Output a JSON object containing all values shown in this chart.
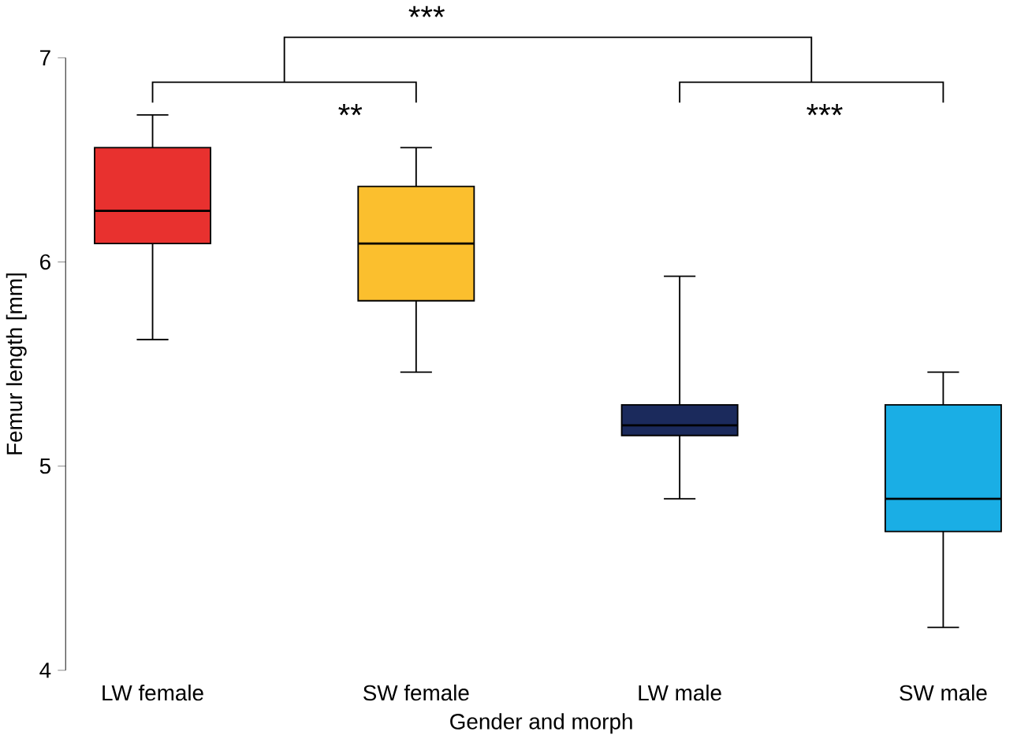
{
  "chart_data": {
    "type": "box",
    "xlabel": "Gender and morph",
    "ylabel": "Femur length [mm]",
    "categories": [
      "LW female",
      "SW female",
      "LW male",
      "SW male"
    ],
    "colors": [
      "#e8312f",
      "#fbbf2e",
      "#1b2a5c",
      "#1aaee5"
    ],
    "boxes": [
      {
        "low": 5.62,
        "q1": 6.09,
        "median": 6.25,
        "q3": 6.56,
        "high": 6.72
      },
      {
        "low": 5.46,
        "q1": 5.81,
        "median": 6.09,
        "q3": 6.37,
        "high": 6.56
      },
      {
        "low": 4.84,
        "q1": 5.15,
        "median": 5.2,
        "q3": 5.3,
        "high": 5.93
      },
      {
        "low": 4.21,
        "q1": 4.68,
        "median": 4.84,
        "q3": 5.3,
        "high": 5.46
      }
    ],
    "ylim": [
      4,
      7
    ],
    "yticks": [
      4,
      5,
      6,
      7
    ],
    "grid": false,
    "annotations": [
      "**",
      "***",
      "***"
    ]
  }
}
